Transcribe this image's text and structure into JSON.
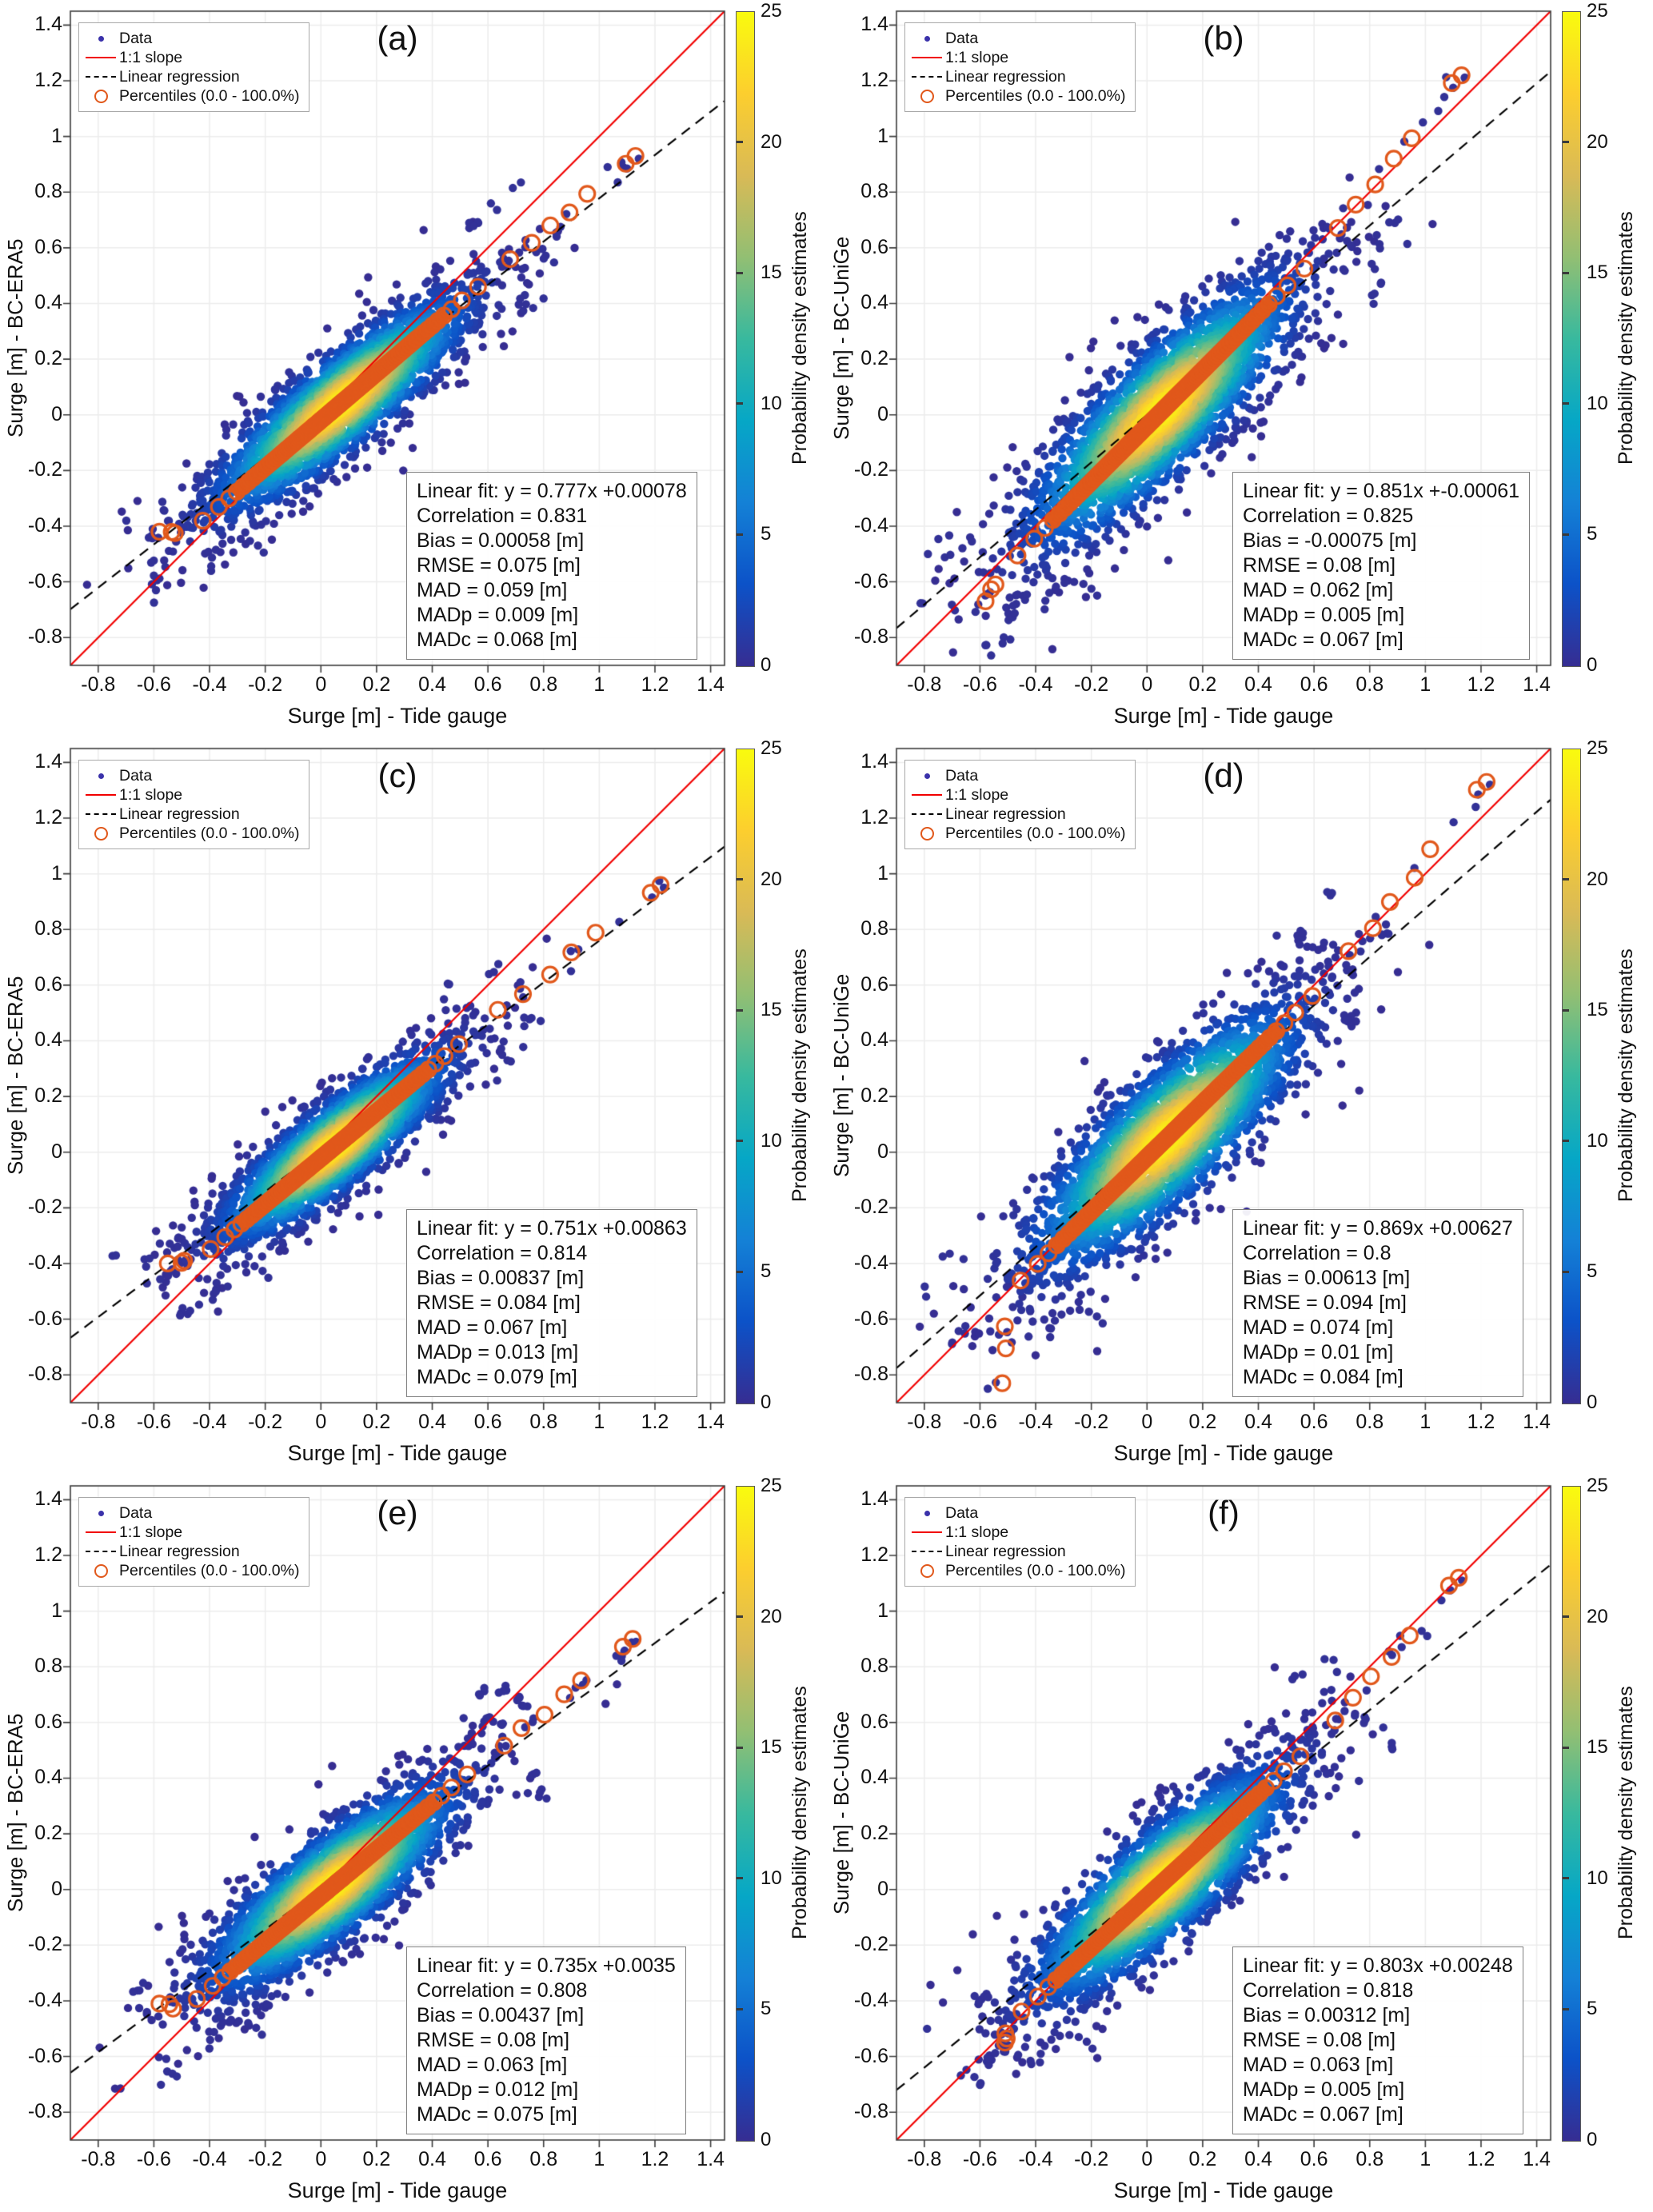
{
  "chart_data": {
    "type": "scatter",
    "subtype": "density-scatter-qq",
    "grid": true,
    "xlabel": "Surge [m] - Tide gauge",
    "axis_range": [
      -0.9,
      1.45
    ],
    "x_ticks": [
      "-0.8",
      "-0.6",
      "-0.4",
      "-0.2",
      "0",
      "0.2",
      "0.4",
      "0.6",
      "0.8",
      "1",
      "1.2",
      "1.4"
    ],
    "y_ticks": [
      "-0.8",
      "-0.6",
      "-0.4",
      "-0.2",
      "0",
      "0.2",
      "0.4",
      "0.6",
      "0.8",
      "1",
      "1.2",
      "1.4"
    ],
    "legend": [
      {
        "label": "Data",
        "marker": "dot",
        "color": "#3a31aa"
      },
      {
        "label": "1:1 slope",
        "marker": "line",
        "color": "#f10000"
      },
      {
        "label": "Linear regression",
        "marker": "dashed-line",
        "color": "#000000"
      },
      {
        "label": "Percentiles (0.0 - 100.0%)",
        "marker": "circle",
        "color": "#e1581b"
      }
    ],
    "colorbar": {
      "label": "Probability density estimates",
      "min": 0,
      "max": 25,
      "ticks": [
        0,
        5,
        10,
        15,
        20,
        25
      ],
      "colormap": [
        "#362d92",
        "#0c52c8",
        "#1481d6",
        "#06a7c6",
        "#38b99e",
        "#92bf73",
        "#d9ba56",
        "#fcce2e",
        "#f9fb0e"
      ]
    },
    "colors": {
      "data_dot": "#3a31aa",
      "percentile": "#e1581b",
      "one_to_one_line": "#f10000",
      "regression_line": "#000000",
      "gridline": "#ececec",
      "axis_box": "#3c3c3c"
    },
    "panels": [
      {
        "id": "a",
        "label": "(a)",
        "ylabel": "Surge [m] - BC-ERA5",
        "stats_lines": [
          "Linear fit: y = 0.777x +0.00078",
          "Correlation = 0.831",
          "Bias = 0.00058 [m]",
          "RMSE = 0.075 [m]",
          "MAD = 0.059 [m]",
          "MADp = 0.009 [m]",
          "MADc = 0.068 [m]"
        ],
        "regression": {
          "slope": 0.777,
          "intercept": 0.00078
        },
        "correlation": 0.831,
        "bias_m": 0.00058,
        "rmse_m": 0.075,
        "mad_m": 0.059,
        "madp_m": 0.009,
        "madc_m": 0.068,
        "percentile_min": [
          -0.58,
          -0.42
        ],
        "percentile_max": [
          1.13,
          0.93
        ],
        "cloud": {
          "center": [
            0.07,
            0.04
          ],
          "axis_slope": 0.83,
          "sigma_along": 0.27,
          "sigma_across": 0.07
        }
      },
      {
        "id": "b",
        "label": "(b)",
        "ylabel": "Surge [m] - BC-UniGe",
        "stats_lines": [
          "Linear fit: y = 0.851x +-0.00061",
          "Correlation = 0.825",
          "Bias = -0.00075 [m]",
          "RMSE = 0.08 [m]",
          "MAD = 0.062 [m]",
          "MADp = 0.005 [m]",
          "MADc = 0.067 [m]"
        ],
        "regression": {
          "slope": 0.851,
          "intercept": -0.00061
        },
        "correlation": 0.825,
        "bias_m": -0.00075,
        "rmse_m": 0.08,
        "mad_m": 0.062,
        "madp_m": 0.005,
        "madc_m": 0.067,
        "percentile_min": [
          -0.58,
          -0.67
        ],
        "percentile_max": [
          1.13,
          1.22
        ],
        "cloud": {
          "center": [
            0.05,
            0.01
          ],
          "axis_slope": 1.0,
          "sigma_along": 0.3,
          "sigma_across": 0.09
        }
      },
      {
        "id": "c",
        "label": "(c)",
        "ylabel": "Surge [m] - BC-ERA5",
        "stats_lines": [
          "Linear fit: y = 0.751x +0.00863",
          "Correlation = 0.814",
          "Bias = 0.00837 [m]",
          "RMSE = 0.084 [m]",
          "MAD = 0.067 [m]",
          "MADp = 0.013 [m]",
          "MADc = 0.079 [m]"
        ],
        "regression": {
          "slope": 0.751,
          "intercept": 0.00863
        },
        "correlation": 0.814,
        "bias_m": 0.00837,
        "rmse_m": 0.084,
        "mad_m": 0.067,
        "madp_m": 0.013,
        "madc_m": 0.079,
        "percentile_min": [
          -0.55,
          -0.4
        ],
        "percentile_max": [
          1.22,
          0.96
        ],
        "cloud": {
          "center": [
            0.05,
            0.02
          ],
          "axis_slope": 0.8,
          "sigma_along": 0.24,
          "sigma_across": 0.065
        }
      },
      {
        "id": "d",
        "label": "(d)",
        "ylabel": "Surge [m] - BC-UniGe",
        "stats_lines": [
          "Linear fit: y = 0.869x +0.00627",
          "Correlation = 0.8",
          "Bias = 0.00613 [m]",
          "RMSE = 0.094 [m]",
          "MAD = 0.074 [m]",
          "MADp = 0.01 [m]",
          "MADc = 0.084 [m]"
        ],
        "regression": {
          "slope": 0.869,
          "intercept": 0.00627
        },
        "correlation": 0.8,
        "bias_m": 0.00613,
        "rmse_m": 0.094,
        "mad_m": 0.074,
        "madp_m": 0.01,
        "madc_m": 0.084,
        "percentile_min": [
          -0.52,
          -0.83
        ],
        "percentile_max": [
          1.22,
          1.33
        ],
        "cloud": {
          "center": [
            0.07,
            0.05
          ],
          "axis_slope": 0.97,
          "sigma_along": 0.3,
          "sigma_across": 0.095
        }
      },
      {
        "id": "e",
        "label": "(e)",
        "ylabel": "Surge [m] - BC-ERA5",
        "stats_lines": [
          "Linear fit: y = 0.735x +0.0035",
          "Correlation = 0.808",
          "Bias = 0.00437 [m]",
          "RMSE = 0.08 [m]",
          "MAD = 0.063 [m]",
          "MADp = 0.012 [m]",
          "MADc = 0.075 [m]"
        ],
        "regression": {
          "slope": 0.735,
          "intercept": 0.0035
        },
        "correlation": 0.808,
        "bias_m": 0.00437,
        "rmse_m": 0.08,
        "mad_m": 0.063,
        "madp_m": 0.012,
        "madc_m": 0.075,
        "percentile_min": [
          -0.58,
          -0.41
        ],
        "percentile_max": [
          1.12,
          0.9
        ],
        "cloud": {
          "center": [
            0.04,
            0.01
          ],
          "axis_slope": 0.8,
          "sigma_along": 0.26,
          "sigma_across": 0.078
        }
      },
      {
        "id": "f",
        "label": "(f)",
        "ylabel": "Surge [m] - BC-UniGe",
        "stats_lines": [
          "Linear fit: y = 0.803x +0.00248",
          "Correlation = 0.818",
          "Bias = 0.00312 [m]",
          "RMSE = 0.08 [m]",
          "MAD = 0.063 [m]",
          "MADp = 0.005 [m]",
          "MADc = 0.067 [m]"
        ],
        "regression": {
          "slope": 0.803,
          "intercept": 0.00248
        },
        "correlation": 0.818,
        "bias_m": 0.00312,
        "rmse_m": 0.08,
        "mad_m": 0.063,
        "madp_m": 0.005,
        "madc_m": 0.067,
        "percentile_min": [
          -0.51,
          -0.55
        ],
        "percentile_max": [
          1.12,
          1.12
        ],
        "cloud": {
          "center": [
            0.05,
            0.02
          ],
          "axis_slope": 0.9,
          "sigma_along": 0.28,
          "sigma_across": 0.082
        }
      }
    ]
  }
}
